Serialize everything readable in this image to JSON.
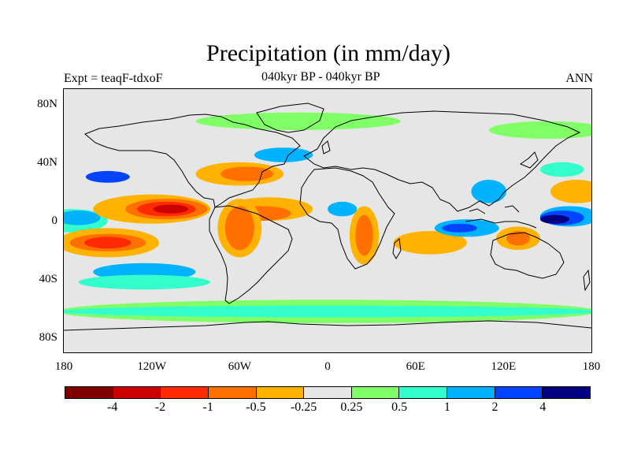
{
  "figure": {
    "title": "Precipitation (in mm/day)",
    "left_label": "Expt = teaqF-tdxoF",
    "center_label": "040kyr BP - 040kyr BP",
    "right_label": "ANN"
  },
  "axes": {
    "y_ticks": [
      {
        "label": "80N",
        "lat": 80
      },
      {
        "label": "40N",
        "lat": 40
      },
      {
        "label": "0",
        "lat": 0
      },
      {
        "label": "40S",
        "lat": -40
      },
      {
        "label": "80S",
        "lat": -80
      }
    ],
    "x_ticks": [
      {
        "label": "180",
        "lon": -180
      },
      {
        "label": "120W",
        "lon": -120
      },
      {
        "label": "60W",
        "lon": -60
      },
      {
        "label": "0",
        "lon": 0
      },
      {
        "label": "60E",
        "lon": 60
      },
      {
        "label": "120E",
        "lon": 120
      },
      {
        "label": "180",
        "lon": 180
      }
    ],
    "lon_range": [
      -180,
      180
    ],
    "lat_range": [
      -90,
      90
    ]
  },
  "colorbar": {
    "colors": [
      "#800000",
      "#cc0000",
      "#ff2a00",
      "#ff7000",
      "#ffb300",
      "#e6e6e6",
      "#80ff66",
      "#33ffcc",
      "#00b3ff",
      "#0044ff",
      "#000080"
    ],
    "labels": [
      {
        "text": "-4",
        "boundary": 1
      },
      {
        "text": "-2",
        "boundary": 2
      },
      {
        "text": "-1",
        "boundary": 3
      },
      {
        "text": "-0.5",
        "boundary": 4
      },
      {
        "text": "-0.25",
        "boundary": 5
      },
      {
        "text": "0.25",
        "boundary": 6
      },
      {
        "text": "0.5",
        "boundary": 7
      },
      {
        "text": "1",
        "boundary": 8
      },
      {
        "text": "2",
        "boundary": 9
      },
      {
        "text": "4",
        "boundary": 10
      }
    ]
  },
  "field": {
    "regions": [
      {
        "level": 6,
        "lon": 0,
        "lat": -62,
        "rlon": 185,
        "rlat": 8
      },
      {
        "level": 7,
        "lon": 0,
        "lat": -62,
        "rlon": 185,
        "rlat": 4
      },
      {
        "level": 6,
        "lon": -20,
        "lat": 68,
        "rlon": 70,
        "rlat": 6
      },
      {
        "level": 6,
        "lon": 150,
        "lat": 62,
        "rlon": 40,
        "rlat": 6
      },
      {
        "level": 7,
        "lon": -175,
        "lat": 0,
        "rlon": 25,
        "rlat": 8
      },
      {
        "level": 8,
        "lon": -170,
        "lat": 2,
        "rlon": 15,
        "rlat": 5
      },
      {
        "level": 8,
        "lon": 165,
        "lat": 3,
        "rlon": 20,
        "rlat": 7
      },
      {
        "level": 9,
        "lon": 160,
        "lat": 2,
        "rlon": 15,
        "rlat": 5
      },
      {
        "level": 10,
        "lon": 155,
        "lat": 1,
        "rlon": 10,
        "rlat": 3
      },
      {
        "level": 4,
        "lon": -120,
        "lat": 8,
        "rlon": 40,
        "rlat": 10
      },
      {
        "level": 3,
        "lon": -110,
        "lat": 8,
        "rlon": 28,
        "rlat": 7
      },
      {
        "level": 2,
        "lon": -110,
        "lat": 8,
        "rlon": 20,
        "rlat": 5
      },
      {
        "level": 1,
        "lon": -107,
        "lat": 8,
        "rlon": 12,
        "rlat": 3
      },
      {
        "level": 4,
        "lon": -150,
        "lat": -15,
        "rlon": 35,
        "rlat": 10
      },
      {
        "level": 3,
        "lon": -150,
        "lat": -15,
        "rlon": 26,
        "rlat": 6
      },
      {
        "level": 2,
        "lon": -150,
        "lat": -15,
        "rlon": 16,
        "rlat": 4
      },
      {
        "level": 4,
        "lon": -40,
        "lat": 8,
        "rlon": 30,
        "rlat": 8
      },
      {
        "level": 3,
        "lon": -45,
        "lat": 5,
        "rlon": 20,
        "rlat": 5
      },
      {
        "level": 4,
        "lon": -60,
        "lat": -5,
        "rlon": 15,
        "rlat": 20
      },
      {
        "level": 3,
        "lon": -60,
        "lat": -5,
        "rlon": 10,
        "rlat": 15
      },
      {
        "level": 4,
        "lon": -60,
        "lat": 32,
        "rlon": 30,
        "rlat": 8
      },
      {
        "level": 3,
        "lon": -55,
        "lat": 32,
        "rlon": 18,
        "rlat": 5
      },
      {
        "level": 4,
        "lon": 25,
        "lat": -10,
        "rlon": 10,
        "rlat": 20
      },
      {
        "level": 3,
        "lon": 25,
        "lat": -10,
        "rlon": 6,
        "rlat": 14
      },
      {
        "level": 5,
        "lon": 25,
        "lat": 40,
        "rlon": 20,
        "rlat": 6
      },
      {
        "level": 4,
        "lon": 70,
        "lat": -15,
        "rlon": 25,
        "rlat": 8
      },
      {
        "level": 4,
        "lon": 130,
        "lat": -12,
        "rlon": 15,
        "rlat": 8
      },
      {
        "level": 3,
        "lon": 130,
        "lat": -12,
        "rlon": 8,
        "rlat": 5
      },
      {
        "level": 4,
        "lon": 170,
        "lat": 20,
        "rlon": 18,
        "rlat": 8
      },
      {
        "level": 5,
        "lon": 120,
        "lat": -35,
        "rlon": 25,
        "rlat": 8
      },
      {
        "level": 8,
        "lon": 95,
        "lat": -5,
        "rlon": 22,
        "rlat": 6
      },
      {
        "level": 9,
        "lon": 90,
        "lat": -5,
        "rlon": 12,
        "rlat": 3
      },
      {
        "level": 8,
        "lon": -125,
        "lat": -35,
        "rlon": 35,
        "rlat": 6
      },
      {
        "level": 7,
        "lon": -125,
        "lat": -42,
        "rlon": 45,
        "rlat": 5
      },
      {
        "level": 8,
        "lon": -30,
        "lat": 45,
        "rlon": 20,
        "rlat": 5
      },
      {
        "level": 9,
        "lon": -150,
        "lat": 30,
        "rlon": 15,
        "rlat": 4
      },
      {
        "level": 8,
        "lon": 10,
        "lat": 8,
        "rlon": 10,
        "rlat": 5
      },
      {
        "level": 8,
        "lon": 110,
        "lat": 20,
        "rlon": 12,
        "rlat": 8
      },
      {
        "level": 7,
        "lon": 160,
        "lat": 35,
        "rlon": 15,
        "rlat": 5
      }
    ]
  }
}
